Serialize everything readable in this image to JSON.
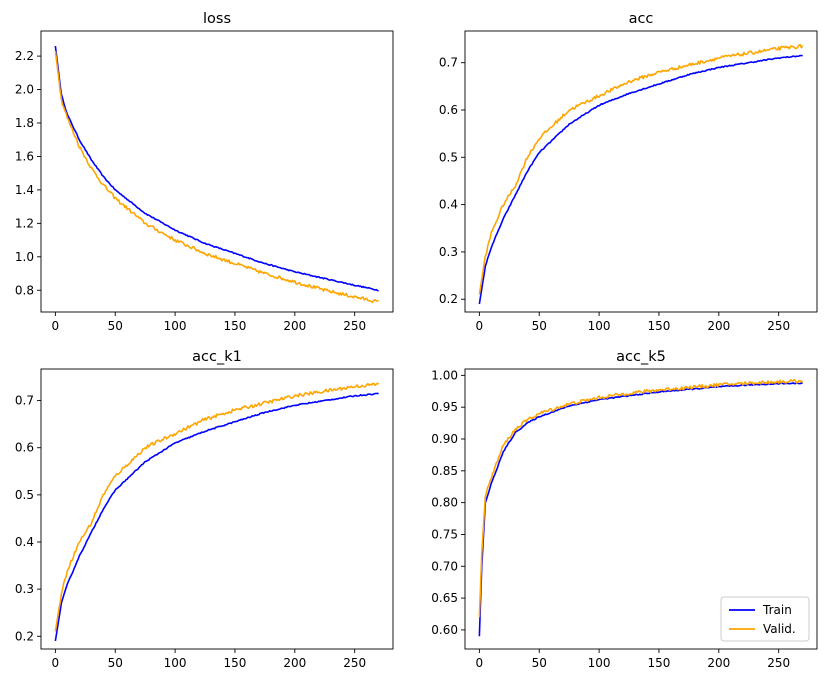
{
  "figure": {
    "series_colors": {
      "train": "#0000ff",
      "valid": "#ffa500"
    },
    "legend": {
      "entries": [
        "Train",
        "Valid."
      ],
      "placement": "lower-right of acc_k5 panel"
    }
  },
  "chart_data": [
    {
      "type": "line",
      "title": "loss",
      "xlabel": "",
      "ylabel": "",
      "xlim": [
        -12,
        282
      ],
      "ylim": [
        0.67,
        2.35
      ],
      "xticks": [
        0,
        50,
        100,
        150,
        200,
        250
      ],
      "yticks": [
        0.8,
        1.0,
        1.2,
        1.4,
        1.6,
        1.8,
        2.0,
        2.2
      ],
      "tick_decimals": 1,
      "grid": false,
      "series": [
        {
          "name": "Train",
          "color": "#0000ff",
          "x": [
            0,
            5,
            10,
            20,
            30,
            40,
            50,
            75,
            100,
            125,
            150,
            175,
            200,
            225,
            250,
            270
          ],
          "y": [
            2.26,
            1.97,
            1.85,
            1.7,
            1.58,
            1.48,
            1.4,
            1.26,
            1.16,
            1.08,
            1.02,
            0.96,
            0.91,
            0.87,
            0.83,
            0.8
          ]
        },
        {
          "name": "Valid.",
          "color": "#ffa500",
          "x": [
            0,
            5,
            10,
            20,
            30,
            40,
            50,
            75,
            100,
            125,
            150,
            175,
            200,
            225,
            250,
            270
          ],
          "y": [
            2.23,
            1.94,
            1.83,
            1.66,
            1.53,
            1.43,
            1.35,
            1.2,
            1.1,
            1.02,
            0.96,
            0.9,
            0.85,
            0.8,
            0.76,
            0.73
          ]
        }
      ]
    },
    {
      "type": "line",
      "title": "acc",
      "xlabel": "",
      "ylabel": "",
      "xlim": [
        -12,
        282
      ],
      "ylim": [
        0.173,
        0.767
      ],
      "xticks": [
        0,
        50,
        100,
        150,
        200,
        250
      ],
      "yticks": [
        0.2,
        0.3,
        0.4,
        0.5,
        0.6,
        0.7
      ],
      "tick_decimals": 1,
      "grid": false,
      "series": [
        {
          "name": "Train",
          "color": "#0000ff",
          "x": [
            0,
            5,
            10,
            20,
            30,
            40,
            50,
            75,
            100,
            125,
            150,
            175,
            200,
            225,
            250,
            270
          ],
          "y": [
            0.19,
            0.27,
            0.31,
            0.37,
            0.42,
            0.47,
            0.51,
            0.57,
            0.61,
            0.635,
            0.655,
            0.675,
            0.69,
            0.7,
            0.71,
            0.715
          ]
        },
        {
          "name": "Valid.",
          "color": "#ffa500",
          "x": [
            0,
            5,
            10,
            20,
            30,
            40,
            50,
            75,
            100,
            125,
            150,
            175,
            200,
            225,
            250,
            270
          ],
          "y": [
            0.21,
            0.29,
            0.34,
            0.4,
            0.44,
            0.5,
            0.54,
            0.6,
            0.63,
            0.66,
            0.68,
            0.695,
            0.71,
            0.72,
            0.73,
            0.735
          ]
        }
      ]
    },
    {
      "type": "line",
      "title": "acc_k1",
      "xlabel": "",
      "ylabel": "",
      "xlim": [
        -12,
        282
      ],
      "ylim": [
        0.173,
        0.767
      ],
      "xticks": [
        0,
        50,
        100,
        150,
        200,
        250
      ],
      "yticks": [
        0.2,
        0.3,
        0.4,
        0.5,
        0.6,
        0.7
      ],
      "tick_decimals": 1,
      "grid": false,
      "series": [
        {
          "name": "Train",
          "color": "#0000ff",
          "x": [
            0,
            5,
            10,
            20,
            30,
            40,
            50,
            75,
            100,
            125,
            150,
            175,
            200,
            225,
            250,
            270
          ],
          "y": [
            0.19,
            0.27,
            0.31,
            0.37,
            0.42,
            0.47,
            0.51,
            0.57,
            0.61,
            0.635,
            0.655,
            0.675,
            0.69,
            0.7,
            0.71,
            0.715
          ]
        },
        {
          "name": "Valid.",
          "color": "#ffa500",
          "x": [
            0,
            5,
            10,
            20,
            30,
            40,
            50,
            75,
            100,
            125,
            150,
            175,
            200,
            225,
            250,
            270
          ],
          "y": [
            0.21,
            0.29,
            0.34,
            0.4,
            0.44,
            0.5,
            0.54,
            0.6,
            0.63,
            0.66,
            0.68,
            0.695,
            0.71,
            0.72,
            0.73,
            0.735
          ]
        }
      ]
    },
    {
      "type": "line",
      "title": "acc_k5",
      "xlabel": "",
      "ylabel": "",
      "xlim": [
        -12,
        282
      ],
      "ylim": [
        0.57,
        1.01
      ],
      "xticks": [
        0,
        50,
        100,
        150,
        200,
        250
      ],
      "yticks": [
        0.6,
        0.65,
        0.7,
        0.75,
        0.8,
        0.85,
        0.9,
        0.95,
        1.0
      ],
      "tick_decimals": 2,
      "grid": false,
      "legend": true,
      "series": [
        {
          "name": "Train",
          "color": "#0000ff",
          "x": [
            0,
            2,
            5,
            10,
            20,
            30,
            40,
            50,
            75,
            100,
            125,
            150,
            175,
            200,
            225,
            250,
            270
          ],
          "y": [
            0.59,
            0.7,
            0.8,
            0.83,
            0.88,
            0.91,
            0.925,
            0.935,
            0.952,
            0.962,
            0.968,
            0.974,
            0.978,
            0.982,
            0.985,
            0.987,
            0.988
          ]
        },
        {
          "name": "Valid.",
          "color": "#ffa500",
          "x": [
            0,
            2,
            5,
            10,
            20,
            30,
            40,
            50,
            75,
            100,
            125,
            150,
            175,
            200,
            225,
            250,
            270
          ],
          "y": [
            0.62,
            0.72,
            0.81,
            0.84,
            0.89,
            0.915,
            0.93,
            0.94,
            0.955,
            0.965,
            0.972,
            0.977,
            0.981,
            0.985,
            0.988,
            0.99,
            0.991
          ]
        }
      ]
    }
  ]
}
